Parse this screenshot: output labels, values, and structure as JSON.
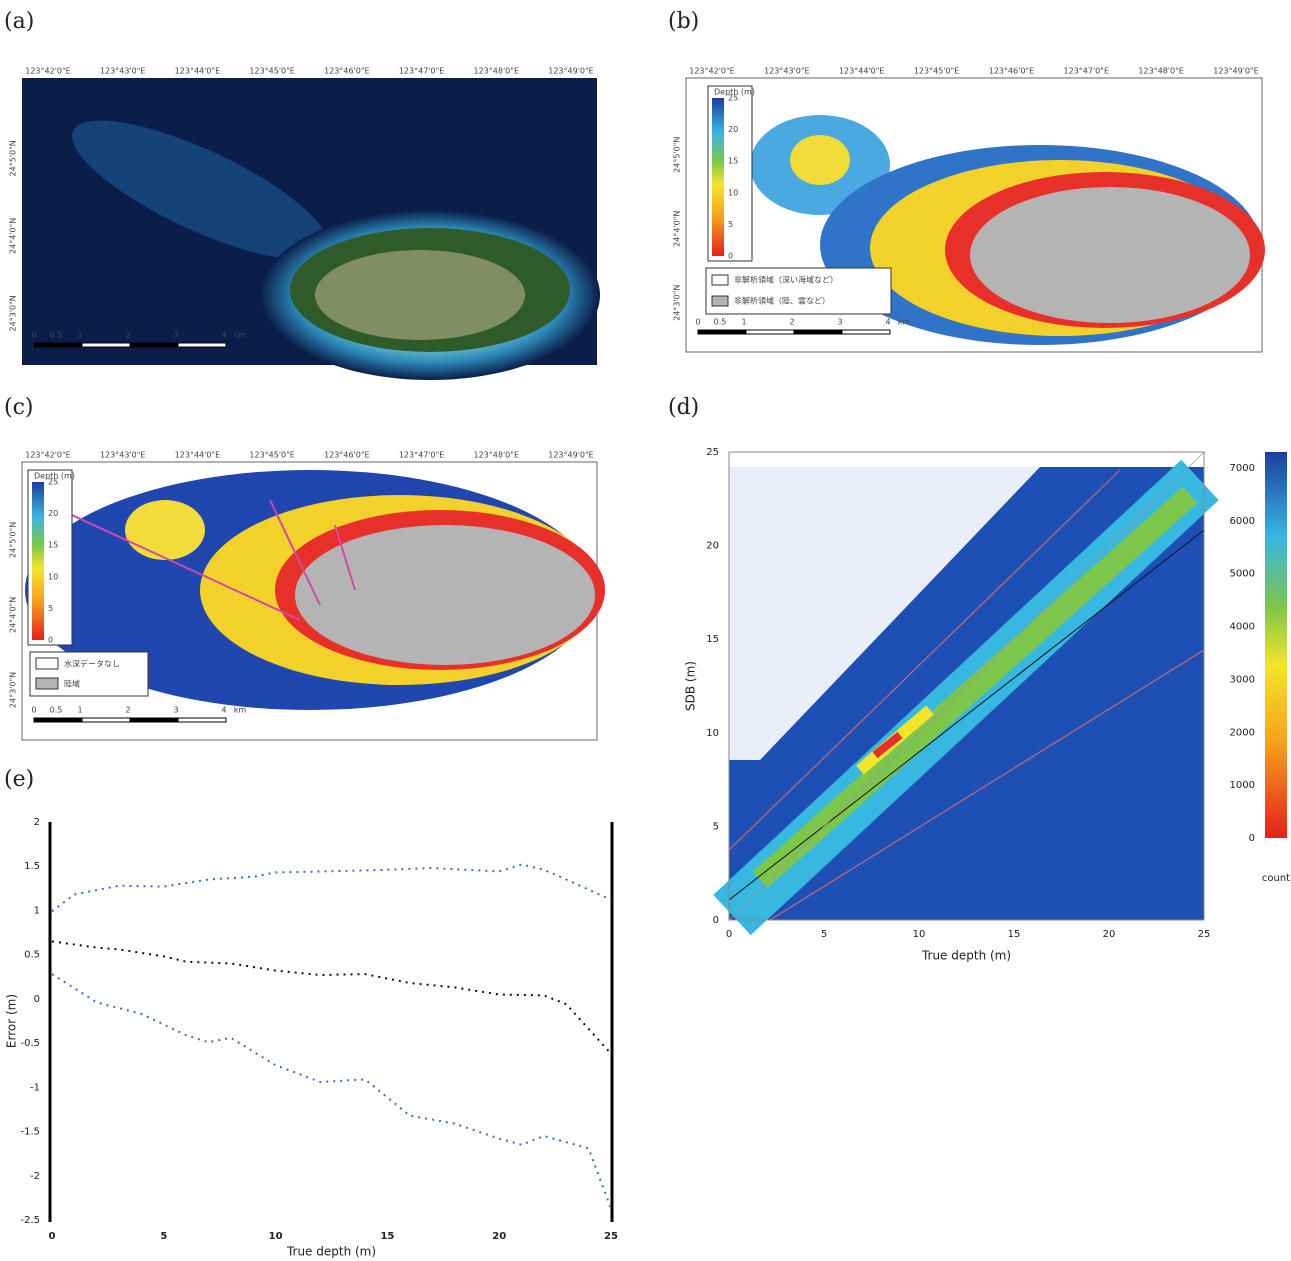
{
  "panel_labels": [
    "(a)",
    "(b)",
    "(c)",
    "(d)",
    "(e)"
  ],
  "maps": {
    "lon_labels": [
      "123°42'0\"E",
      "123°43'0\"E",
      "123°44'0\"E",
      "123°45'0\"E",
      "123°46'0\"E",
      "123°47'0\"E",
      "123°48'0\"E",
      "123°49'0\"E"
    ],
    "lat_labels": [
      "24°5'0\"N",
      "24°4'0\"N",
      "24°3'0\"N"
    ],
    "scale_labels": [
      "0",
      "0.5",
      "1",
      "2",
      "3",
      "4",
      "km"
    ],
    "depth_title": "Depth (m)",
    "depth_ticks": [
      0,
      5,
      10,
      15,
      20,
      25
    ],
    "legend_b": [
      "非解析領域（深い海域など）",
      "非解析領域（陸、雲など）"
    ],
    "legend_c": [
      "水深データなし",
      "陸域"
    ]
  },
  "chart_data": [
    {
      "type": "heatmap",
      "xlabel": "True depth (m)",
      "ylabel": "SDB (m)",
      "xlim": [
        0,
        25
      ],
      "ylim": [
        0,
        25
      ],
      "xticks": [
        0,
        5,
        10,
        15,
        20,
        25
      ],
      "yticks": [
        0,
        5,
        10,
        15,
        20,
        25
      ],
      "colorbar_label": "count",
      "clim": [
        0,
        7000
      ],
      "cticks": [
        0,
        1000,
        2000,
        3000,
        4000,
        5000,
        6000,
        7000
      ]
    },
    {
      "type": "line",
      "xlabel": "True depth (m)",
      "ylabel": "Error (m)",
      "xlim": [
        0,
        25
      ],
      "ylim": [
        -2.5,
        2
      ],
      "xticks": [
        0,
        5,
        10,
        15,
        20,
        25
      ],
      "yticks": [
        2,
        1.5,
        1,
        0.5,
        0,
        -0.5,
        -1,
        -1.5,
        -2,
        -2.5
      ],
      "series": [
        {
          "color": "#3a6fc8",
          "x": [
            0,
            1,
            3,
            5,
            7,
            9,
            10,
            12,
            15,
            17,
            20,
            21,
            22,
            23,
            25
          ],
          "values": [
            0.99,
            1.18,
            1.28,
            1.27,
            1.35,
            1.38,
            1.43,
            1.44,
            1.46,
            1.48,
            1.44,
            1.52,
            1.46,
            1.35,
            1.12
          ]
        },
        {
          "color": "#111111",
          "x": [
            0,
            2,
            3,
            5,
            6,
            8,
            10,
            12,
            14,
            16,
            18,
            20,
            22,
            23,
            25
          ],
          "values": [
            0.65,
            0.58,
            0.56,
            0.48,
            0.42,
            0.4,
            0.32,
            0.27,
            0.28,
            0.18,
            0.13,
            0.05,
            0.04,
            -0.06,
            -0.62
          ]
        },
        {
          "color": "#3a6fc8",
          "x": [
            0,
            2,
            4,
            6,
            7,
            8,
            10,
            12,
            14,
            16,
            18,
            20,
            21,
            22,
            24,
            25
          ],
          "values": [
            0.28,
            -0.04,
            -0.17,
            -0.41,
            -0.49,
            -0.44,
            -0.75,
            -0.94,
            -0.91,
            -1.32,
            -1.41,
            -1.58,
            -1.65,
            -1.55,
            -1.69,
            -2.37
          ]
        }
      ]
    }
  ]
}
